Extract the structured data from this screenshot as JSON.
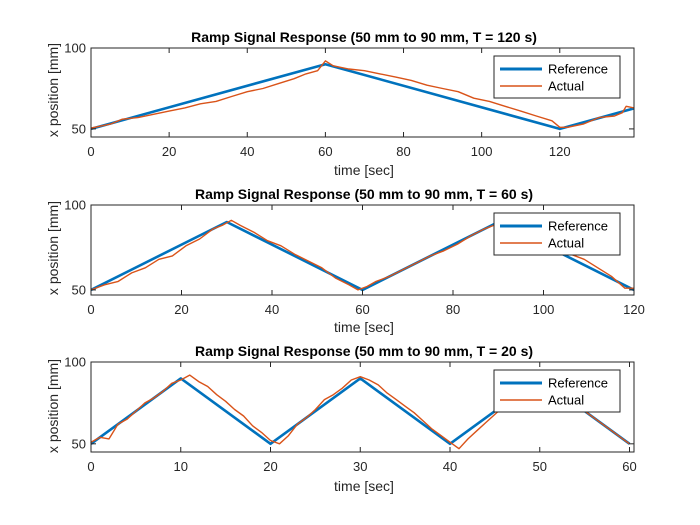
{
  "colors": {
    "reference": "#0072BD",
    "actual": "#D95319",
    "axis": "#262626"
  },
  "chart_data": [
    {
      "type": "line",
      "title": "Ramp Signal Response (50 mm to 90 mm, T = 120 s)",
      "xlabel": "time [sec]",
      "ylabel": "x position [mm]",
      "xlim": [
        0,
        139
      ],
      "ylim": [
        45,
        100
      ],
      "xticks": [
        0,
        20,
        40,
        60,
        80,
        100,
        120
      ],
      "yticks": [
        50,
        100
      ],
      "grid": false,
      "legend_position": "top-right",
      "series": [
        {
          "name": "Reference",
          "x": [
            0,
            60,
            120,
            139
          ],
          "y": [
            50,
            90,
            50,
            62.7
          ]
        },
        {
          "name": "Actual",
          "x": [
            0,
            5,
            8,
            12,
            16,
            20,
            24,
            28,
            32,
            36,
            40,
            44,
            48,
            52,
            55,
            58,
            60,
            62,
            66,
            70,
            74,
            78,
            82,
            86,
            90,
            94,
            98,
            102,
            106,
            110,
            114,
            118,
            120,
            122,
            126,
            130,
            134,
            136,
            137,
            139
          ],
          "y": [
            50.5,
            53,
            56,
            57,
            59,
            61,
            63,
            65.5,
            67,
            70,
            73,
            75,
            78,
            81,
            84,
            86,
            92,
            89,
            87,
            86,
            84,
            82,
            80,
            77,
            75,
            73,
            69,
            67,
            64,
            61,
            58,
            55,
            51,
            51,
            53,
            57,
            58,
            60,
            64,
            63
          ]
        }
      ]
    },
    {
      "type": "line",
      "title": "Ramp Signal Response (50 mm to 90 mm, T = 60 s)",
      "xlabel": "time [sec]",
      "ylabel": "x position [mm]",
      "xlim": [
        0,
        120
      ],
      "ylim": [
        47,
        100
      ],
      "xticks": [
        0,
        20,
        40,
        60,
        80,
        100,
        120
      ],
      "yticks": [
        50,
        100
      ],
      "grid": false,
      "legend_position": "top-right",
      "series": [
        {
          "name": "Reference",
          "x": [
            0,
            30,
            60,
            90,
            120
          ],
          "y": [
            50,
            90,
            50,
            90,
            50
          ]
        },
        {
          "name": "Actual",
          "x": [
            0,
            3,
            6,
            9,
            12,
            15,
            18,
            21,
            24,
            27,
            29,
            31,
            33,
            36,
            39,
            42,
            45,
            48,
            51,
            54,
            57,
            59,
            61,
            63,
            66,
            69,
            72,
            75,
            78,
            81,
            84,
            87,
            89,
            91,
            94,
            97,
            100,
            103,
            106,
            109,
            112,
            115,
            118,
            120
          ],
          "y": [
            50,
            53,
            55,
            60,
            63,
            68,
            70,
            76,
            80,
            86,
            88,
            91,
            88,
            84,
            79,
            76,
            71,
            67,
            63,
            57,
            53,
            50,
            52,
            55,
            58,
            62,
            66,
            70,
            73,
            77,
            82,
            86,
            88,
            93,
            86,
            82,
            79,
            75,
            71,
            68,
            63,
            58,
            51,
            51
          ]
        }
      ]
    },
    {
      "type": "line",
      "title": "Ramp Signal Response (50 mm to 90 mm, T = 20 s)",
      "xlabel": "time [sec]",
      "ylabel": "x position [mm]",
      "xlim": [
        0,
        60.5
      ],
      "ylim": [
        45,
        100
      ],
      "xticks": [
        0,
        10,
        20,
        30,
        40,
        50,
        60
      ],
      "yticks": [
        50,
        100
      ],
      "grid": false,
      "legend_position": "top-right",
      "series": [
        {
          "name": "Reference",
          "x": [
            0,
            10,
            20,
            30,
            40,
            50,
            60
          ],
          "y": [
            50,
            90,
            50,
            90,
            50,
            90,
            50
          ]
        },
        {
          "name": "Actual",
          "x": [
            0,
            1,
            2,
            3,
            4,
            5,
            6,
            7,
            8,
            9,
            10,
            11,
            12,
            13,
            14,
            15,
            16,
            17,
            18,
            19,
            20,
            21,
            22,
            23,
            24,
            25,
            26,
            27,
            28,
            29,
            30,
            31,
            32,
            33,
            34,
            35,
            36,
            37,
            38,
            39,
            40,
            41,
            42,
            43,
            44,
            45,
            46,
            47,
            48,
            49,
            50,
            51,
            52,
            53,
            54,
            55,
            56,
            57,
            58,
            59,
            60
          ],
          "y": [
            51,
            54,
            53,
            62,
            65,
            70,
            75,
            78,
            82,
            87,
            89,
            92,
            88,
            85,
            80,
            76,
            71,
            67,
            61,
            57,
            52,
            50,
            55,
            62,
            66,
            71,
            77,
            80,
            84,
            89,
            91,
            89,
            86,
            81,
            77,
            73,
            69,
            64,
            59,
            55,
            51,
            47,
            53,
            58,
            63,
            68,
            73,
            77,
            82,
            86,
            89,
            86,
            81,
            78,
            74,
            70,
            66,
            62,
            58,
            54,
            50
          ]
        }
      ]
    }
  ]
}
